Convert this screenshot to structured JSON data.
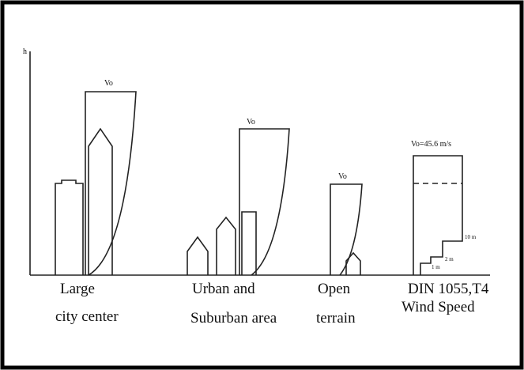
{
  "axis_label": "h",
  "zones": [
    {
      "label_lines": [
        "Large",
        "city center"
      ],
      "profile_label": "Vo"
    },
    {
      "label_lines": [
        "Urban and",
        "Suburban area"
      ],
      "profile_label": "Vo"
    },
    {
      "label_lines": [
        "Open",
        "terrain"
      ],
      "profile_label": "Vo"
    },
    {
      "label_lines": [
        "DIN 1055,T4",
        "Wind Speed"
      ],
      "profile_label": "Vo=45.6 m/s",
      "step_labels": [
        "10 m",
        "2 m",
        "1 m"
      ]
    }
  ]
}
